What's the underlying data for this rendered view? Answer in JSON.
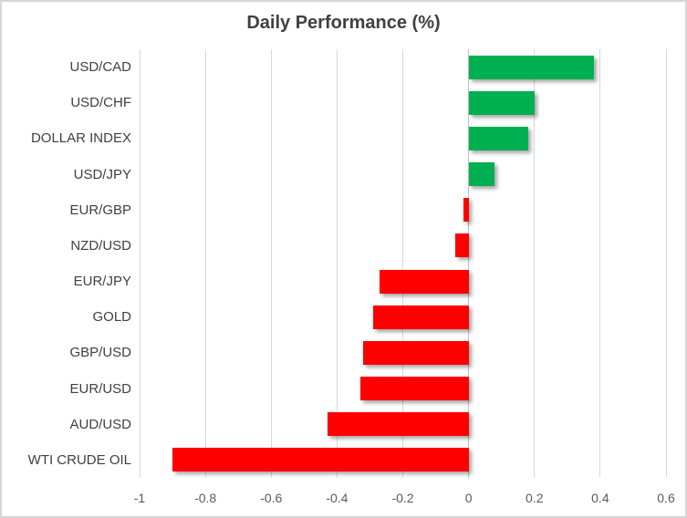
{
  "chart": {
    "title": "Daily Performance (%)",
    "colors": {
      "positive": "#00B050",
      "negative": "#FF0000",
      "gridline": "#D9D9D9",
      "axis_line": "#BFBFBF",
      "tick_label": "#595959",
      "category_label": "#404040",
      "title": "#404040",
      "border": "#D6D6D6",
      "background": "#FFFFFF"
    }
  },
  "chart_data": {
    "type": "bar",
    "orientation": "horizontal",
    "title": "Daily Performance (%)",
    "categories": [
      "USD/CAD",
      "USD/CHF",
      "DOLLAR INDEX",
      "USD/JPY",
      "EUR/GBP",
      "NZD/USD",
      "EUR/JPY",
      "GOLD",
      "GBP/USD",
      "EUR/USD",
      "AUD/USD",
      "WTI CRUDE OIL"
    ],
    "values": [
      0.38,
      0.2,
      0.18,
      0.08,
      -0.015,
      -0.04,
      -0.27,
      -0.29,
      -0.32,
      -0.33,
      -0.43,
      -0.9
    ],
    "xlabel": "",
    "ylabel": "",
    "xlim": [
      -1,
      0.6
    ],
    "xticks": [
      -1,
      -0.8,
      -0.6,
      -0.4,
      -0.2,
      0,
      0.2,
      0.4,
      0.6
    ],
    "xtick_labels": [
      "-1",
      "-0.8",
      "-0.6",
      "-0.4",
      "-0.2",
      "0",
      "0.2",
      "0.4",
      "0.6"
    ],
    "grid": true,
    "legend": false
  }
}
